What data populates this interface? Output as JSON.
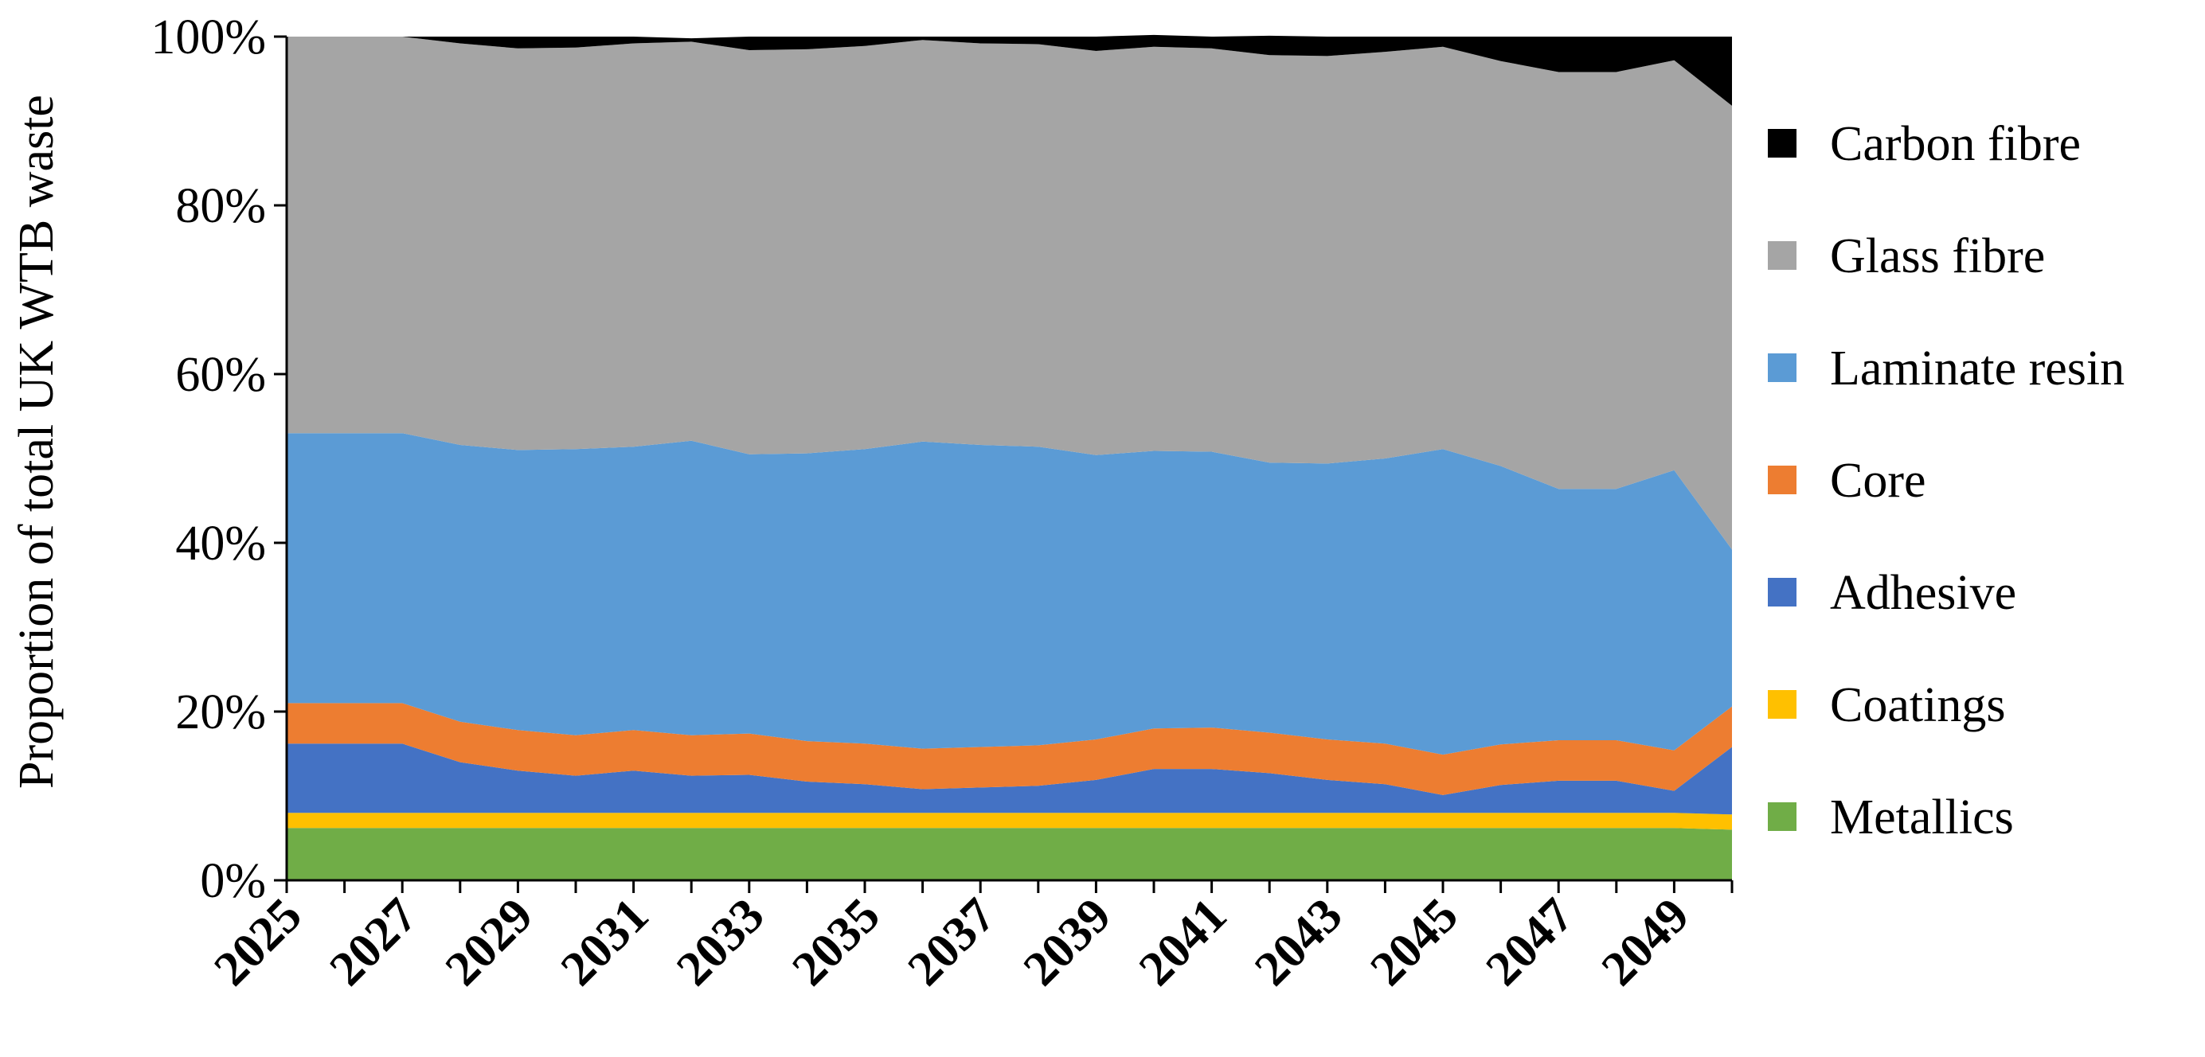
{
  "chart_data": {
    "type": "area",
    "stacked": true,
    "percent": true,
    "title": "",
    "xlabel": "",
    "ylabel": "Proportion of total UK WTB waste",
    "ylim": [
      0,
      100
    ],
    "yticks": [
      "0%",
      "20%",
      "40%",
      "60%",
      "80%",
      "100%"
    ],
    "xticks": [
      "2025",
      "2027",
      "2029",
      "2031",
      "2033",
      "2035",
      "2037",
      "2039",
      "2041",
      "2043",
      "2045",
      "2047",
      "2049"
    ],
    "x": [
      2025,
      2026,
      2027,
      2028,
      2029,
      2030,
      2031,
      2032,
      2033,
      2034,
      2035,
      2036,
      2037,
      2038,
      2039,
      2040,
      2041,
      2042,
      2043,
      2044,
      2045,
      2046,
      2047,
      2048,
      2049,
      2050
    ],
    "legend_position": "right",
    "grid": false,
    "series": [
      {
        "name": "Metallics",
        "color": "#70AD47",
        "values": [
          6.2,
          6.2,
          6.2,
          6.2,
          6.2,
          6.2,
          6.2,
          6.2,
          6.2,
          6.2,
          6.2,
          6.2,
          6.2,
          6.2,
          6.2,
          6.2,
          6.2,
          6.2,
          6.2,
          6.2,
          6.2,
          6.2,
          6.2,
          6.2,
          6.2,
          6.0
        ]
      },
      {
        "name": "Coatings",
        "color": "#FFC000",
        "values": [
          1.8,
          1.8,
          1.8,
          1.8,
          1.8,
          1.8,
          1.8,
          1.8,
          1.8,
          1.8,
          1.8,
          1.8,
          1.8,
          1.8,
          1.8,
          1.8,
          1.8,
          1.8,
          1.8,
          1.8,
          1.8,
          1.8,
          1.8,
          1.8,
          1.8,
          1.8
        ]
      },
      {
        "name": "Adhesive",
        "color": "#4472C4",
        "values": [
          8.2,
          8.2,
          8.2,
          6.0,
          5.0,
          4.4,
          5.0,
          4.4,
          4.5,
          3.7,
          3.4,
          2.8,
          3.0,
          3.2,
          3.9,
          5.2,
          5.2,
          4.7,
          3.9,
          3.4,
          2.1,
          3.3,
          3.8,
          3.8,
          2.6,
          8.0
        ]
      },
      {
        "name": "Core",
        "color": "#ED7D31",
        "values": [
          4.8,
          4.8,
          4.8,
          4.8,
          4.8,
          4.8,
          4.8,
          4.8,
          4.9,
          4.8,
          4.8,
          4.8,
          4.8,
          4.8,
          4.8,
          4.8,
          4.9,
          4.8,
          4.8,
          4.8,
          4.8,
          4.8,
          4.8,
          4.8,
          4.8,
          4.8
        ]
      },
      {
        "name": "Laminate resin",
        "color": "#5B9BD5",
        "values": [
          32.0,
          32.0,
          32.0,
          32.8,
          33.2,
          33.9,
          33.6,
          34.9,
          33.1,
          34.1,
          34.9,
          36.4,
          35.8,
          35.4,
          33.7,
          32.9,
          32.7,
          32.0,
          32.7,
          33.8,
          36.2,
          33.0,
          29.8,
          29.8,
          33.2,
          18.6
        ]
      },
      {
        "name": "Glass fibre",
        "color": "#A5A5A5",
        "values": [
          47.0,
          47.0,
          47.0,
          47.6,
          47.6,
          47.6,
          47.8,
          47.3,
          47.9,
          47.9,
          47.8,
          47.6,
          47.6,
          47.7,
          47.9,
          47.9,
          47.8,
          48.3,
          48.3,
          48.2,
          47.7,
          48.0,
          49.4,
          49.4,
          48.6,
          52.6
        ]
      },
      {
        "name": "Carbon fibre",
        "color": "#000000",
        "values": [
          0.0,
          0.0,
          0.0,
          0.8,
          1.4,
          1.3,
          0.8,
          0.4,
          1.6,
          1.5,
          1.1,
          0.4,
          0.8,
          0.9,
          1.7,
          1.4,
          1.4,
          2.3,
          2.3,
          1.8,
          1.2,
          2.9,
          4.2,
          4.2,
          2.8,
          8.2
        ]
      }
    ]
  }
}
